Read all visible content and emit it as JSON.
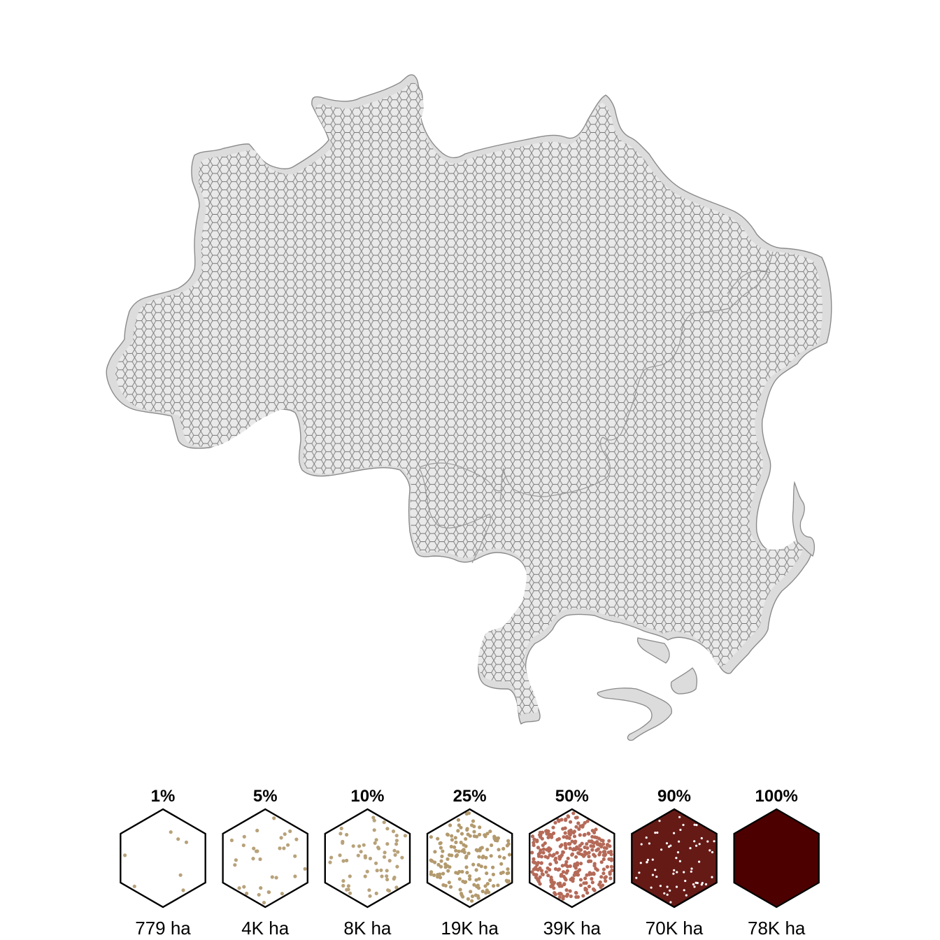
{
  "map": {
    "region_fill": "#dcdcdc",
    "region_stroke": "#8a8a8a",
    "hex_stroke": "#7a7a7a",
    "hex_fill": "#e8e8e8"
  },
  "legend": {
    "items": [
      {
        "pct_label": "1%",
        "area_label": "779 ha",
        "fraction": 0.01,
        "dot_color": "#b8a27a",
        "bg": "#ffffff"
      },
      {
        "pct_label": "5%",
        "area_label": "4K ha",
        "fraction": 0.05,
        "dot_color": "#b8a27a",
        "bg": "#ffffff"
      },
      {
        "pct_label": "10%",
        "area_label": "8K ha",
        "fraction": 0.1,
        "dot_color": "#b8a27a",
        "bg": "#ffffff"
      },
      {
        "pct_label": "25%",
        "area_label": "19K ha",
        "fraction": 0.25,
        "dot_color": "#b39a6e",
        "bg": "#ffffff"
      },
      {
        "pct_label": "50%",
        "area_label": "39K ha",
        "fraction": 0.5,
        "dot_color": "#b56a58",
        "bg": "#ffffff"
      },
      {
        "pct_label": "90%",
        "area_label": "70K ha",
        "fraction": 0.9,
        "dot_color": "#ffffff",
        "bg": "#651a16"
      },
      {
        "pct_label": "100%",
        "area_label": "78K ha",
        "fraction": 1.0,
        "dot_color": "#4d0000",
        "bg": "#4d0000"
      }
    ]
  }
}
